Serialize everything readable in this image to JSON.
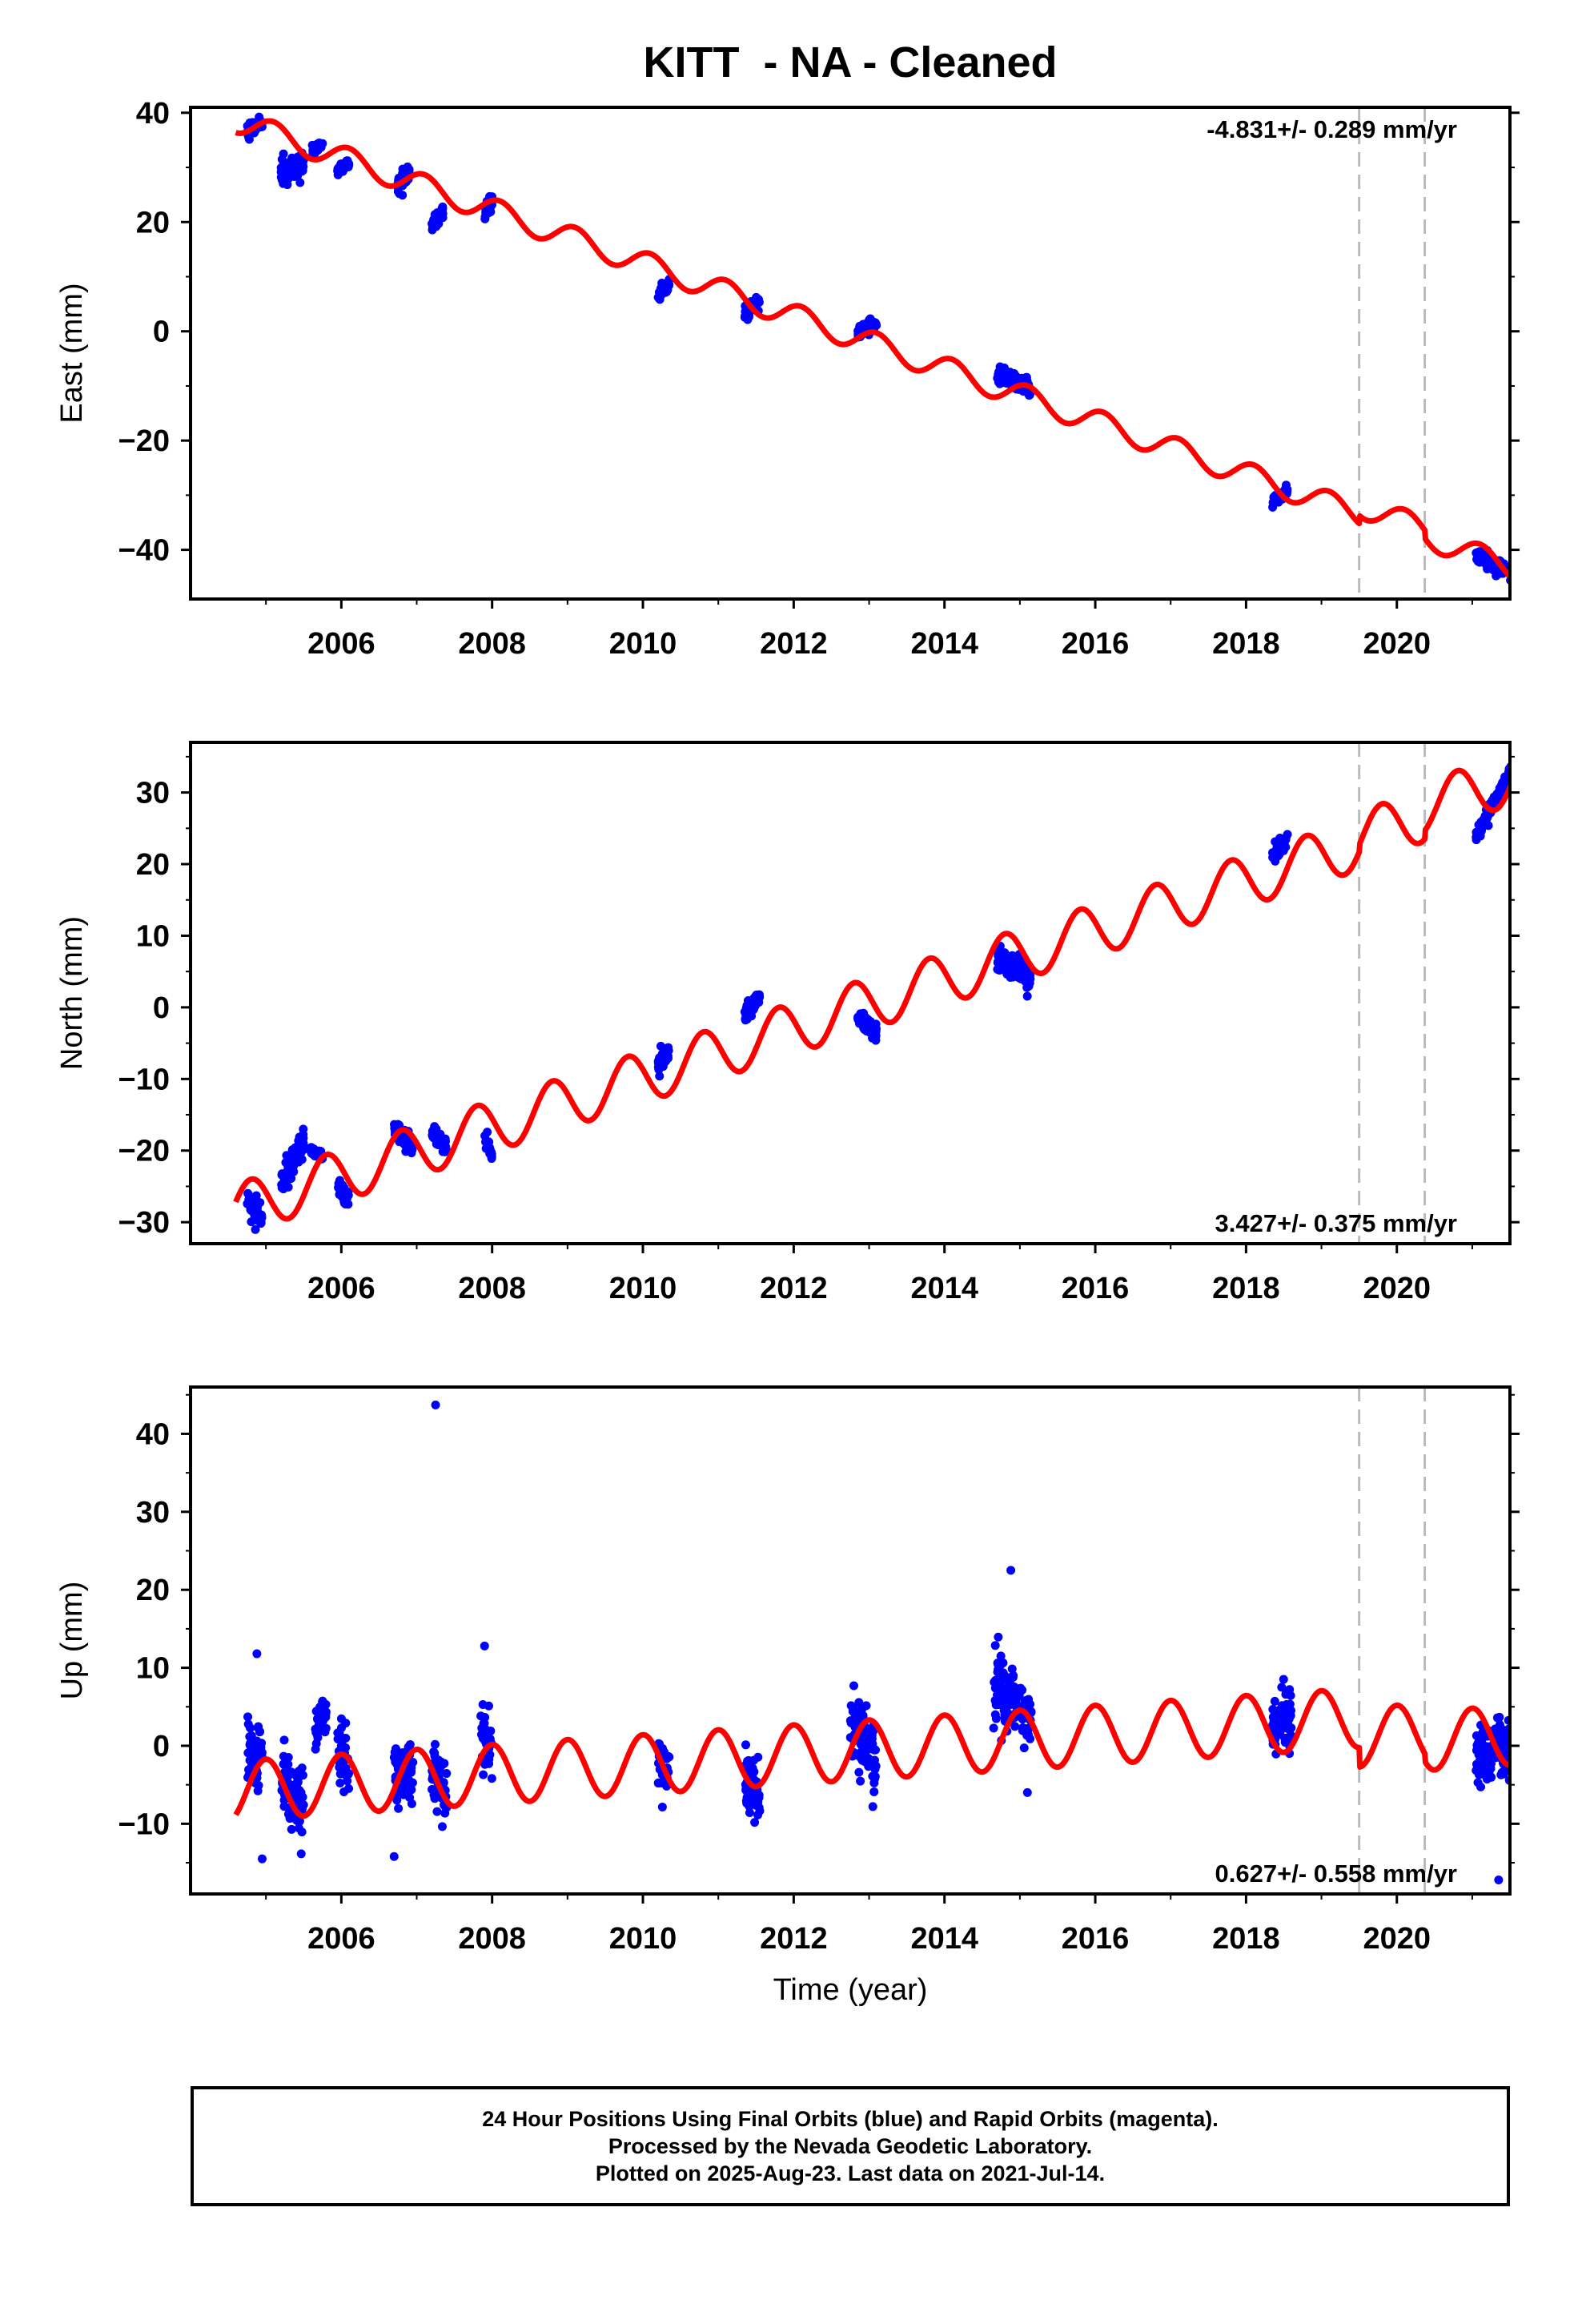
{
  "title": "KITT  - NA - Cleaned",
  "colors": {
    "data": "#0000ff",
    "model": "#ff0000",
    "offset_lines": "#bbbbbb",
    "frame": "#000000"
  },
  "x_tick_labels": [
    "2006",
    "2008",
    "2010",
    "2012",
    "2014",
    "2016",
    "2018",
    "2020"
  ],
  "xlabel": "Time (year)",
  "chart_data": [
    {
      "type": "scatter",
      "ylabel": "East (mm)",
      "xlim": [
        2004.0,
        2021.5
      ],
      "ylim": [
        -49,
        41
      ],
      "y_ticks": [
        -40,
        -20,
        0,
        20,
        40
      ],
      "x_ticks": [
        2006,
        2008,
        2010,
        2012,
        2014,
        2016,
        2018,
        2020
      ],
      "rate_label": "-4.831+/- 0.289 mm/yr",
      "rate_label_position": "top-right",
      "offset_lines_x": [
        2019.5,
        2020.37
      ],
      "model": {
        "slope": -4.831,
        "ref_year": 2013.0,
        "intercept": -2.0,
        "amplitude": 2.2,
        "phase": 0.85,
        "offsets": [
          {
            "x": 2019.5,
            "dy": 1.5
          },
          {
            "x": 2020.37,
            "dy": -1.5
          }
        ]
      },
      "clusters": [
        {
          "x": [
            2004.75,
            2004.95
          ],
          "y": [
            36.5,
            38.5
          ],
          "spread": 1.2
        },
        {
          "x": [
            2005.2,
            2005.5
          ],
          "y": [
            29,
            31
          ],
          "spread": 1.8
        },
        {
          "x": [
            2005.6,
            2005.75
          ],
          "y": [
            33,
            34
          ],
          "spread": 0.8
        },
        {
          "x": [
            2005.95,
            2006.1
          ],
          "y": [
            29.5,
            31
          ],
          "spread": 0.8
        },
        {
          "x": [
            2006.75,
            2006.9
          ],
          "y": [
            26.5,
            29.5
          ],
          "spread": 1.5
        },
        {
          "x": [
            2007.2,
            2007.35
          ],
          "y": [
            19.5,
            22
          ],
          "spread": 1.2
        },
        {
          "x": [
            2007.9,
            2008.0
          ],
          "y": [
            21.5,
            24
          ],
          "spread": 1.3
        },
        {
          "x": [
            2010.2,
            2010.35
          ],
          "y": [
            6.5,
            8.5
          ],
          "spread": 1.0
        },
        {
          "x": [
            2011.35,
            2011.55
          ],
          "y": [
            3,
            6
          ],
          "spread": 1.3
        },
        {
          "x": [
            2012.85,
            2013.1
          ],
          "y": [
            0,
            1.5
          ],
          "spread": 1.0
        },
        {
          "x": [
            2014.7,
            2015.15
          ],
          "y": [
            -8,
            -10.5
          ],
          "spread": 1.3
        },
        {
          "x": [
            2018.35,
            2018.55
          ],
          "y": [
            -31,
            -29.5
          ],
          "spread": 1.0
        },
        {
          "x": [
            2021.05,
            2021.55
          ],
          "y": [
            -41,
            -44.5
          ],
          "spread": 1.2
        }
      ],
      "outliers": []
    },
    {
      "type": "scatter",
      "ylabel": "North (mm)",
      "xlim": [
        2004.0,
        2021.5
      ],
      "ylim": [
        -33,
        37
      ],
      "y_ticks": [
        -30,
        -20,
        -10,
        0,
        10,
        20,
        30
      ],
      "x_ticks": [
        2006,
        2008,
        2010,
        2012,
        2014,
        2016,
        2018,
        2020
      ],
      "rate_label": "3.427+/- 0.375 mm/yr",
      "rate_label_position": "bottom-right",
      "offset_lines_x": [
        2019.5,
        2020.37
      ],
      "model": {
        "slope": 3.427,
        "ref_year": 2013.0,
        "intercept": 0.5,
        "amplitude": 3.6,
        "phase": 0.55,
        "offsets": [
          {
            "x": 2019.5,
            "dy": 1.0
          },
          {
            "x": 2020.37,
            "dy": 1.2
          }
        ]
      },
      "clusters": [
        {
          "x": [
            2004.75,
            2004.95
          ],
          "y": [
            -27,
            -29.5
          ],
          "spread": 1.6
        },
        {
          "x": [
            2005.2,
            2005.5
          ],
          "y": [
            -24,
            -19
          ],
          "spread": 1.8
        },
        {
          "x": [
            2005.6,
            2005.75
          ],
          "y": [
            -20,
            -21
          ],
          "spread": 0.8
        },
        {
          "x": [
            2005.95,
            2006.1
          ],
          "y": [
            -25,
            -27
          ],
          "spread": 1.3
        },
        {
          "x": [
            2006.7,
            2006.95
          ],
          "y": [
            -17,
            -19.5
          ],
          "spread": 1.3
        },
        {
          "x": [
            2007.2,
            2007.4
          ],
          "y": [
            -17.5,
            -19.5
          ],
          "spread": 1.3
        },
        {
          "x": [
            2007.9,
            2008.0
          ],
          "y": [
            -18,
            -20.5
          ],
          "spread": 1.0
        },
        {
          "x": [
            2010.2,
            2010.35
          ],
          "y": [
            -8,
            -5.5
          ],
          "spread": 1.5
        },
        {
          "x": [
            2011.35,
            2011.55
          ],
          "y": [
            -1,
            1.5
          ],
          "spread": 1.0
        },
        {
          "x": [
            2012.85,
            2013.1
          ],
          "y": [
            -1.5,
            -3.5
          ],
          "spread": 1.2
        },
        {
          "x": [
            2014.7,
            2015.15
          ],
          "y": [
            7,
            4
          ],
          "spread": 1.6
        },
        {
          "x": [
            2018.35,
            2018.55
          ],
          "y": [
            21,
            23.5
          ],
          "spread": 1.2
        },
        {
          "x": [
            2021.05,
            2021.55
          ],
          "y": [
            24,
            33.5
          ],
          "spread": 1.0
        }
      ],
      "outliers": []
    },
    {
      "type": "scatter",
      "ylabel": "Up (mm)",
      "xlim": [
        2004.0,
        2021.5
      ],
      "ylim": [
        -19,
        46
      ],
      "y_ticks": [
        -10,
        0,
        10,
        20,
        30,
        40
      ],
      "x_ticks": [
        2006,
        2008,
        2010,
        2012,
        2014,
        2016,
        2018,
        2020
      ],
      "rate_label": "0.627+/- 0.558 mm/yr",
      "rate_label_position": "bottom-right",
      "offset_lines_x": [
        2019.5,
        2020.37
      ],
      "model": {
        "slope": 0.627,
        "ref_year": 2013.0,
        "intercept": -0.5,
        "amplitude": 3.8,
        "phase": 0.75,
        "offsets": [
          {
            "x": 2019.5,
            "dy": -2.5
          },
          {
            "x": 2020.37,
            "dy": -1.0
          }
        ]
      },
      "clusters": [
        {
          "x": [
            2004.75,
            2004.95
          ],
          "y": [
            1,
            -2
          ],
          "spread": 4.5
        },
        {
          "x": [
            2005.2,
            2005.5
          ],
          "y": [
            -4,
            -8
          ],
          "spread": 4.0
        },
        {
          "x": [
            2005.65,
            2005.8
          ],
          "y": [
            2,
            4
          ],
          "spread": 2.5
        },
        {
          "x": [
            2005.95,
            2006.1
          ],
          "y": [
            0,
            -3
          ],
          "spread": 3.5
        },
        {
          "x": [
            2006.7,
            2006.95
          ],
          "y": [
            -3,
            -4
          ],
          "spread": 3.5
        },
        {
          "x": [
            2007.2,
            2007.4
          ],
          "y": [
            -3,
            -6
          ],
          "spread": 3.5
        },
        {
          "x": [
            2007.85,
            2008.0
          ],
          "y": [
            2,
            -1
          ],
          "spread": 4.0
        },
        {
          "x": [
            2010.2,
            2010.35
          ],
          "y": [
            -2,
            -3
          ],
          "spread": 3.0
        },
        {
          "x": [
            2011.35,
            2011.55
          ],
          "y": [
            -4,
            -6
          ],
          "spread": 3.5
        },
        {
          "x": [
            2012.75,
            2013.1
          ],
          "y": [
            4,
            -2
          ],
          "spread": 4.0
        },
        {
          "x": [
            2014.65,
            2015.15
          ],
          "y": [
            8,
            3
          ],
          "spread": 4.0
        },
        {
          "x": [
            2018.35,
            2018.6
          ],
          "y": [
            3,
            4
          ],
          "spread": 3.5
        },
        {
          "x": [
            2021.05,
            2021.55
          ],
          "y": [
            -1,
            0
          ],
          "spread": 3.5
        }
      ],
      "outliers": [
        {
          "x": 2007.25,
          "y": 43.7
        },
        {
          "x": 2014.88,
          "y": 22.5
        },
        {
          "x": 2004.88,
          "y": 11.8
        },
        {
          "x": 2007.9,
          "y": 12.8
        },
        {
          "x": 2021.35,
          "y": -17.2
        },
        {
          "x": 2006.7,
          "y": -14.2
        },
        {
          "x": 2004.95,
          "y": -14.5
        },
        {
          "x": 2015.1,
          "y": -6.0
        },
        {
          "x": 2013.05,
          "y": -7.8
        }
      ]
    }
  ],
  "footer": {
    "line1": "24 Hour Positions Using Final Orbits (blue) and Rapid Orbits (magenta).",
    "line2": "Processed by the Nevada Geodetic Laboratory.",
    "line3": "Plotted on 2025-Aug-23. Last data on 2021-Jul-14."
  }
}
